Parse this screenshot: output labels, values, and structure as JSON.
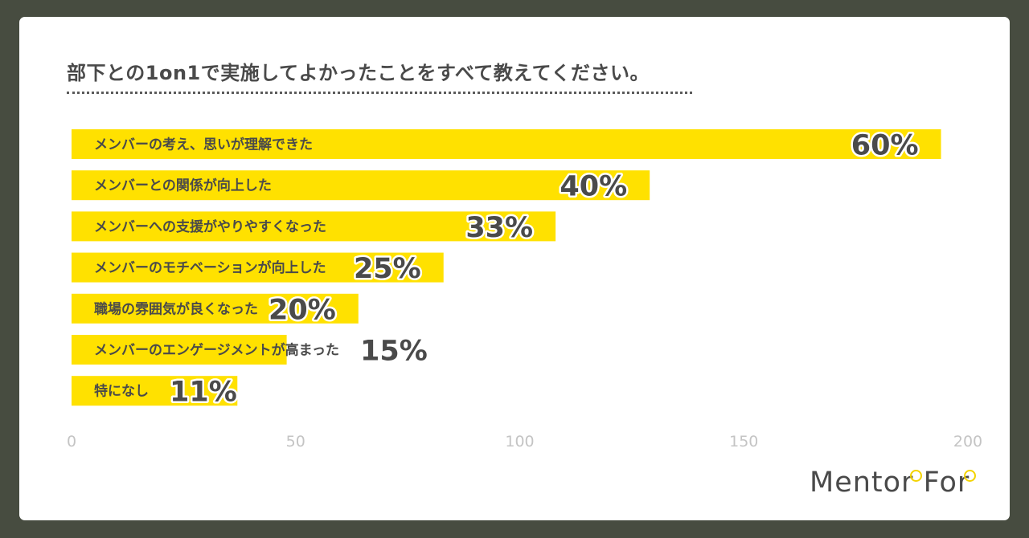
{
  "colors": {
    "bar": "#FFE100",
    "background": "#474C40",
    "card": "#FFFFFF",
    "text": "#4A4A4A",
    "tick": "#C4C4C4"
  },
  "logo": {
    "text": "Mentor For"
  },
  "chart_data": {
    "type": "bar",
    "orientation": "horizontal",
    "title": "部下との1on1で実施してよかったことをすべて教えてください。",
    "categories": [
      "メンバーの考え、思いが理解できた",
      "メンバーとの関係が向上した",
      "メンバーへの支援がやりやすくなった",
      "メンバーのモチベーションが向上した",
      "職場の雰囲気が良くなった",
      "メンバーのエンゲージメントが高まった",
      "特になし"
    ],
    "values": [
      194,
      129,
      108,
      83,
      64,
      48,
      37
    ],
    "value_labels": [
      "60%",
      "40%",
      "33%",
      "25%",
      "20%",
      "15%",
      "11%"
    ],
    "xlim": [
      0,
      200
    ],
    "xticks": [
      0,
      50,
      100,
      150,
      200
    ],
    "grid": false,
    "legend": "none"
  }
}
